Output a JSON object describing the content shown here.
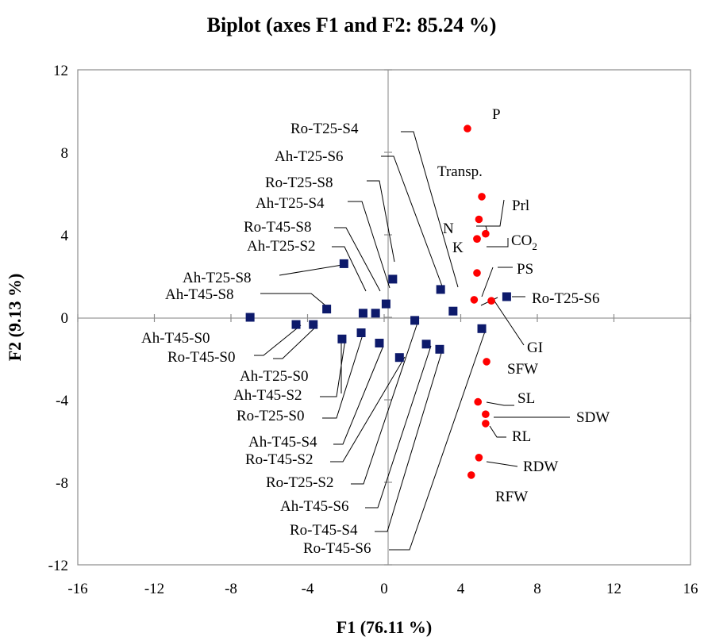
{
  "chart_data": {
    "type": "scatter",
    "title": "Biplot (axes F1 and F2: 85.24 %)",
    "xlabel": "F1 (76.11 %)",
    "ylabel": "F2 (9.13 %)",
    "xlim": [
      -16,
      16
    ],
    "ylim": [
      -12,
      12
    ],
    "xticks": [
      "-16",
      "-12",
      "-8",
      "-4",
      "0",
      "4",
      "8",
      "12",
      "16"
    ],
    "yticks": [
      "12",
      "8",
      "4",
      "0",
      "-4",
      "-8",
      "-12"
    ],
    "grid": false,
    "legend": "none",
    "series": [
      {
        "marker": "square",
        "color": "#0d1a6b",
        "points": [
          {
            "label": "Ah-T45-S0",
            "x": -7.0,
            "y": 0.0
          },
          {
            "label": "Ro-T45-S0",
            "x": -4.6,
            "y": -0.35
          },
          {
            "label": "Ah-T25-S0",
            "x": -3.7,
            "y": -0.35
          },
          {
            "label": "Ah-T45-S8",
            "x": -3.0,
            "y": 0.4
          },
          {
            "label": "Ah-T25-S8",
            "x": -2.1,
            "y": 2.6
          },
          {
            "label": "Ah-T45-S2",
            "x": -2.2,
            "y": -1.05
          },
          {
            "label": "Ro-T25-S0",
            "x": -1.2,
            "y": -0.75
          },
          {
            "label": "Ro-T45-S8",
            "x": -1.1,
            "y": 0.2
          },
          {
            "label": "Ah-T25-S2",
            "x": -0.45,
            "y": 0.2
          },
          {
            "label": "Ah-T45-S4",
            "x": -0.25,
            "y": -1.25
          },
          {
            "label": "Ah-T25-S4",
            "x": 0.1,
            "y": 0.65
          },
          {
            "label": "Ah-T25-S6",
            "x": 0.45,
            "y": 1.85
          },
          {
            "label": "Ro-T45-S2",
            "x": 0.8,
            "y": -1.95
          },
          {
            "label": "Ro-T25-S2",
            "x": 1.6,
            "y": -0.15
          },
          {
            "label": "Ah-T45-S6",
            "x": 2.2,
            "y": -1.3
          },
          {
            "label": "Ro-T45-S4",
            "x": 2.9,
            "y": -1.55
          },
          {
            "label": "Ro-T25-S8",
            "x": 2.95,
            "y": 1.35
          },
          {
            "label": "Ro-T25-S4",
            "x": 3.6,
            "y": 0.3
          },
          {
            "label": "Ro-T45-S6",
            "x": 5.1,
            "y": -0.55
          },
          {
            "label": "Ro-T25-S6",
            "x": 6.4,
            "y": 1.0
          }
        ]
      },
      {
        "marker": "circle",
        "color": "#ff0000",
        "points": [
          {
            "label": "P",
            "x": 4.35,
            "y": 9.15
          },
          {
            "label": "Transp.",
            "x": 5.1,
            "y": 5.85
          },
          {
            "label": "Prl",
            "x": 4.95,
            "y": 4.75
          },
          {
            "label": "N",
            "x": 5.3,
            "y": 4.05
          },
          {
            "label": "K",
            "x": 4.85,
            "y": 3.8
          },
          {
            "label": "CO2",
            "x": 4.85,
            "y": 3.8
          },
          {
            "label": "PS",
            "x": 4.85,
            "y": 2.15
          },
          {
            "label": "GI",
            "x": 5.6,
            "y": 0.8
          },
          {
            "label": "SFW",
            "x": 4.7,
            "y": 0.85
          },
          {
            "label": "SFW",
            "x": 5.35,
            "y": -2.15
          },
          {
            "label": "SL",
            "x": 4.9,
            "y": -4.1
          },
          {
            "label": "SDW",
            "x": 5.3,
            "y": -4.7
          },
          {
            "label": "RL",
            "x": 5.3,
            "y": -5.15
          },
          {
            "label": "RDW",
            "x": 4.95,
            "y": -6.8
          },
          {
            "label": "RFW",
            "x": 4.55,
            "y": -7.65
          }
        ]
      }
    ],
    "label_text": {
      "co2_main": "CO",
      "co2_sub": "2"
    }
  }
}
